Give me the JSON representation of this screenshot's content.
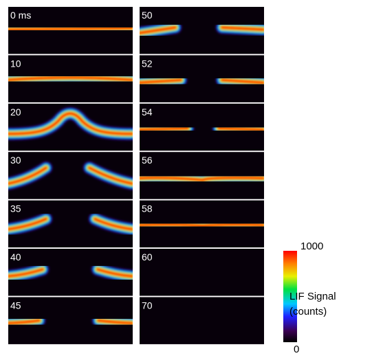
{
  "panels": [
    {
      "label": "0 ms"
    },
    {
      "label": "10"
    },
    {
      "label": "20"
    },
    {
      "label": "30"
    },
    {
      "label": "35"
    },
    {
      "label": "40"
    },
    {
      "label": "45"
    },
    {
      "label": "50"
    },
    {
      "label": "52"
    },
    {
      "label": "54"
    },
    {
      "label": "56"
    },
    {
      "label": "58"
    },
    {
      "label": "60"
    },
    {
      "label": "70"
    }
  ],
  "colorbar": {
    "ticks": [
      0,
      1000
    ],
    "label": [
      "LIF Signal",
      "(counts)"
    ]
  }
}
